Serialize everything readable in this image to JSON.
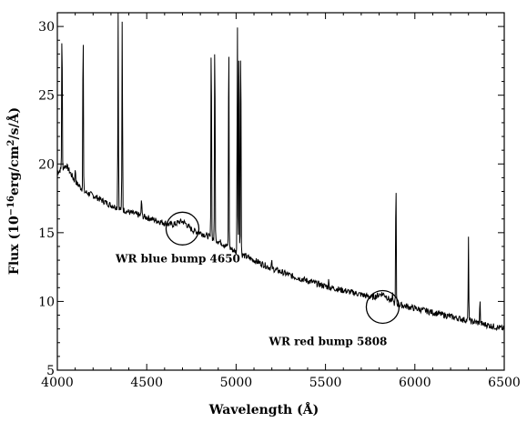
{
  "chart_data": {
    "type": "line",
    "xlabel": "Wavelength (Å)",
    "ylabel": "Flux (10^-16 erg/cm^2/s/Å)",
    "ylabel_parts": {
      "pre": "Flux (10",
      "exp": "−16",
      "mid": "erg/cm",
      "sq": "2",
      "post": "/s/Å)"
    },
    "xlim": [
      4000,
      6500
    ],
    "ylim": [
      5,
      31
    ],
    "x_ticks": [
      4000,
      4500,
      5000,
      5500,
      6000,
      6500
    ],
    "y_ticks": [
      5,
      10,
      15,
      20,
      25,
      30
    ],
    "x_tick_labels": [
      "4000",
      "4500",
      "5000",
      "5500",
      "6000",
      "6500"
    ],
    "y_tick_labels": [
      "5",
      "10",
      "15",
      "20",
      "25",
      "30"
    ],
    "grid": false,
    "continuum": {
      "x": [
        4000,
        4050,
        4100,
        4150,
        4200,
        4300,
        4400,
        4500,
        4600,
        4700,
        4800,
        4900,
        5000,
        5100,
        5200,
        5300,
        5400,
        5500,
        5600,
        5700,
        5800,
        5900,
        6000,
        6100,
        6200,
        6300,
        6400,
        6500
      ],
      "y": [
        19.4,
        19.9,
        18.7,
        18.0,
        17.7,
        17.0,
        16.5,
        16.1,
        15.7,
        15.3,
        15.0,
        14.4,
        13.6,
        13.0,
        12.4,
        11.9,
        11.5,
        11.1,
        10.8,
        10.5,
        10.1,
        9.8,
        9.5,
        9.2,
        8.9,
        8.6,
        8.3,
        8.0
      ]
    },
    "emission_lines": [
      {
        "x": 4026,
        "peak": 31
      },
      {
        "x": 4101,
        "peak": 19.8
      },
      {
        "x": 4144,
        "peak": 31
      },
      {
        "x": 4340,
        "peak": 31
      },
      {
        "x": 4363,
        "peak": 31
      },
      {
        "x": 4471,
        "peak": 17.6
      },
      {
        "x": 4861,
        "peak": 31
      },
      {
        "x": 4881,
        "peak": 31
      },
      {
        "x": 4959,
        "peak": 31
      },
      {
        "x": 5007,
        "peak": 31
      },
      {
        "x": 5016,
        "peak": 31
      },
      {
        "x": 5026,
        "peak": 31
      },
      {
        "x": 5199,
        "peak": 12.9
      },
      {
        "x": 5518,
        "peak": 11.5
      },
      {
        "x": 5876,
        "peak": 10.5
      },
      {
        "x": 5894,
        "peak": 19.5
      },
      {
        "x": 6300,
        "peak": 14.5
      },
      {
        "x": 6364,
        "peak": 10.2
      }
    ],
    "annotations": [
      {
        "text": "WR blue bump 4650",
        "circle_center": [
          4700,
          15.3
        ]
      },
      {
        "text": "WR red bump 5808",
        "circle_center": [
          5820,
          9.6
        ]
      }
    ]
  }
}
